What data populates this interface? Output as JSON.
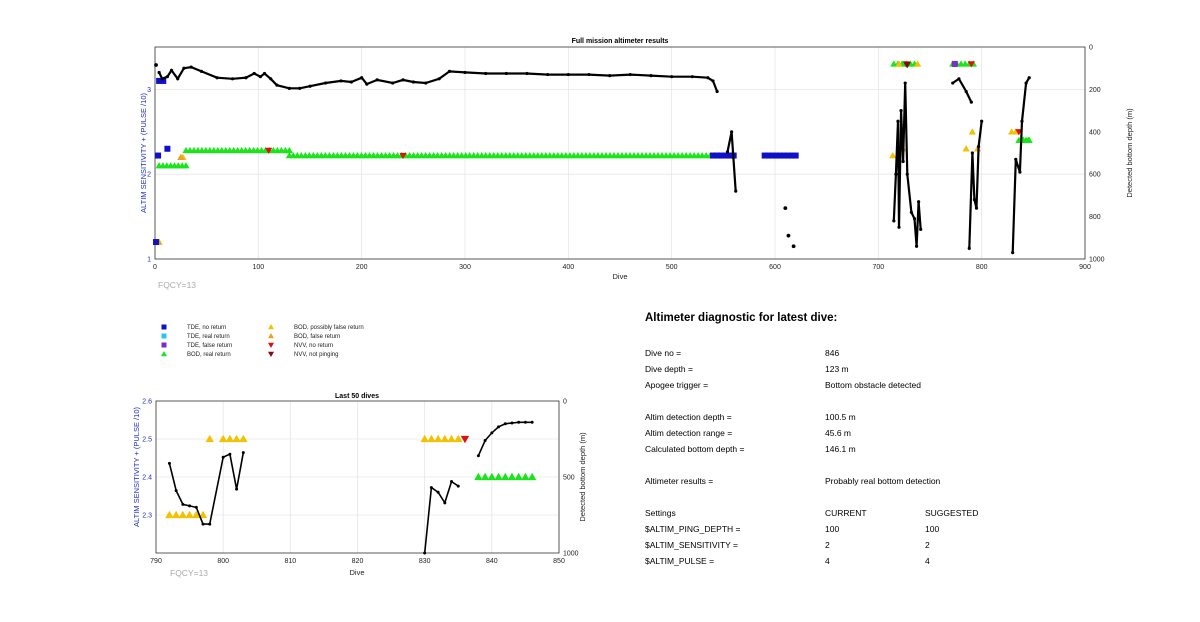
{
  "colors": {
    "tde_no_return": "#1010c8",
    "tde_real_return": "#22c8e6",
    "tde_false_return": "#7a2ec8",
    "bod_real_return": "#19e619",
    "bod_possibly_false": "#f2c200",
    "bod_false_return": "#f0a020",
    "nvv_no_return": "#e01010",
    "nvv_not_pinging": "#7a1010",
    "depth_line": "#000000",
    "left_axis": "#1f2fbf",
    "grid": "#e6e6e6"
  },
  "legend": [
    {
      "label": "TDE, no return",
      "marker": "square",
      "color": "#1010c8"
    },
    {
      "label": "TDE, real return",
      "marker": "square",
      "color": "#22c8e6"
    },
    {
      "label": "TDE, false return",
      "marker": "square",
      "color": "#7a2ec8"
    },
    {
      "label": "BOD, real return",
      "marker": "triangle-up",
      "color": "#19e619"
    },
    {
      "label": "BOD, possibly false return",
      "marker": "triangle-up",
      "color": "#f2c200"
    },
    {
      "label": "BOD, false return",
      "marker": "triangle-up",
      "color": "#f0a020"
    },
    {
      "label": "NVV, no return",
      "marker": "triangle-down",
      "color": "#e01010"
    },
    {
      "label": "NVV, not pinging",
      "marker": "triangle-down",
      "color": "#7a1010"
    }
  ],
  "chart_data": [
    {
      "type": "scatter",
      "title": "Full mission altimeter results",
      "xlabel": "Dive",
      "ylabel_left": "ALTIM SENSITIVITY + (PULSE /10)",
      "ylabel_right": "Detected bottom depth (m)",
      "annotation": "FQCY=13",
      "xlim": [
        0,
        900
      ],
      "ylim_left": [
        1,
        3.5
      ],
      "ylim_right": [
        1000,
        0
      ],
      "xticks": [
        "0",
        "100",
        "200",
        "300",
        "400",
        "500",
        "600",
        "700",
        "800",
        "900"
      ],
      "yticks_left": [
        "1",
        "2",
        "3"
      ],
      "yticks_right": [
        "0",
        "200",
        "400",
        "600",
        "800",
        "1000"
      ],
      "grid": true,
      "series": [
        {
          "name": "BOD, real return",
          "marker": "triangle-up",
          "color": "#19e619",
          "segments": [
            [
              4,
              30,
              2.1
            ],
            [
              30,
              130,
              2.28
            ],
            [
              130,
              545,
              2.22
            ],
            [
              715,
              735,
              3.3
            ],
            [
              772,
              792,
              3.3
            ],
            [
              836,
              845,
              2.4
            ]
          ],
          "points": [
            [
              840,
              2.4
            ],
            [
              843,
              2.4
            ],
            [
              846,
              2.4
            ]
          ]
        },
        {
          "name": "BOD, possibly false return",
          "marker": "triangle-up",
          "color": "#f2c200",
          "points": [
            [
              4,
              1.2
            ],
            [
              27,
              2.2
            ],
            [
              714,
              2.22
            ],
            [
              724,
              2.3
            ],
            [
              720,
              3.3
            ],
            [
              738,
              3.3
            ],
            [
              785,
              2.3
            ],
            [
              791,
              2.5
            ],
            [
              796,
              2.3
            ],
            [
              829,
              2.5
            ],
            [
              833,
              2.5
            ]
          ]
        },
        {
          "name": "BOD, false return",
          "marker": "triangle-up",
          "color": "#f0a020",
          "points": [
            [
              3,
              1.2
            ],
            [
              25,
              2.2
            ]
          ]
        },
        {
          "name": "TDE, no return",
          "marker": "square",
          "color": "#1010c8",
          "segments": [
            [
              540,
              560,
              2.22
            ],
            [
              590,
              620,
              2.22
            ]
          ],
          "points": [
            [
              1,
              1.2
            ],
            [
              3,
              2.22
            ],
            [
              12,
              2.3
            ],
            [
              4,
              3.1
            ],
            [
              8,
              3.1
            ]
          ]
        },
        {
          "name": "TDE, false return",
          "marker": "square",
          "color": "#7a2ec8",
          "points": [
            [
              774,
              3.3
            ]
          ]
        },
        {
          "name": "NVV, no return",
          "marker": "triangle-down",
          "color": "#e01010",
          "points": [
            [
              727,
              3.3
            ],
            [
              790,
              3.3
            ],
            [
              836,
              2.5
            ],
            [
              110,
              2.28
            ],
            [
              240,
              2.22
            ]
          ]
        },
        {
          "name": "NVV, not pinging",
          "marker": "triangle-down",
          "color": "#7a1010",
          "points": [
            [
              728,
              3.29
            ]
          ]
        }
      ],
      "depth_series": {
        "name": "Detected bottom depth",
        "lines": [
          [
            [
              4,
              120
            ],
            [
              7,
              150
            ],
            [
              12,
              140
            ],
            [
              16,
              110
            ],
            [
              22,
              150
            ],
            [
              28,
              100
            ],
            [
              35,
              95
            ],
            [
              45,
              115
            ],
            [
              60,
              145
            ],
            [
              75,
              150
            ],
            [
              88,
              145
            ],
            [
              96,
              125
            ],
            [
              102,
              140
            ],
            [
              106,
              125
            ],
            [
              112,
              150
            ],
            [
              118,
              180
            ],
            [
              130,
              195
            ],
            [
              140,
              195
            ],
            [
              150,
              185
            ],
            [
              165,
              170
            ],
            [
              180,
              160
            ],
            [
              190,
              165
            ],
            [
              200,
              145
            ],
            [
              205,
              175
            ],
            [
              215,
              155
            ],
            [
              230,
              170
            ],
            [
              240,
              155
            ],
            [
              250,
              165
            ],
            [
              262,
              170
            ],
            [
              275,
              150
            ],
            [
              285,
              115
            ],
            [
              300,
              120
            ],
            [
              320,
              125
            ],
            [
              340,
              125
            ],
            [
              360,
              125
            ],
            [
              380,
              130
            ],
            [
              400,
              130
            ],
            [
              420,
              130
            ],
            [
              440,
              135
            ],
            [
              460,
              130
            ],
            [
              480,
              135
            ],
            [
              500,
              140
            ],
            [
              520,
              140
            ],
            [
              535,
              145
            ],
            [
              540,
              160
            ],
            [
              544,
              210
            ]
          ],
          [
            [
              554,
              495
            ],
            [
              558,
              400
            ],
            [
              562,
              680
            ]
          ],
          [
            [
              715,
              820
            ],
            [
              717,
              600
            ],
            [
              719,
              350
            ],
            [
              720,
              850
            ],
            [
              722,
              300
            ],
            [
              724,
              540
            ],
            [
              726,
              170
            ],
            [
              728,
              600
            ],
            [
              732,
              780
            ],
            [
              735,
              810
            ],
            [
              737,
              940
            ],
            [
              739,
              730
            ],
            [
              741,
              860
            ]
          ],
          [
            [
              772,
              170
            ],
            [
              778,
              150
            ],
            [
              785,
              210
            ],
            [
              790,
              260
            ]
          ],
          [
            [
              788,
              950
            ],
            [
              791,
              500
            ],
            [
              793,
              720
            ],
            [
              795,
              760
            ],
            [
              797,
              470
            ],
            [
              800,
              350
            ]
          ],
          [
            [
              830,
              970
            ],
            [
              833,
              530
            ],
            [
              837,
              590
            ],
            [
              839,
              350
            ],
            [
              843,
              170
            ],
            [
              846,
              145
            ]
          ]
        ],
        "points": [
          [
            1,
            85
          ],
          [
            610,
            760
          ],
          [
            613,
            890
          ],
          [
            618,
            940
          ]
        ]
      }
    },
    {
      "type": "scatter",
      "title": "Last 50 dives",
      "xlabel": "Dive",
      "ylabel_left": "ALTIM SENSITIVITY + (PULSE /10)",
      "ylabel_right": "Detected bottom depth (m)",
      "annotation": "FQCY=13",
      "xlim": [
        790,
        850
      ],
      "ylim_left": [
        2.2,
        2.6
      ],
      "ylim_right": [
        1000,
        0
      ],
      "xticks": [
        "790",
        "800",
        "810",
        "820",
        "830",
        "840",
        "850"
      ],
      "yticks_left": [
        "2.3",
        "2.4",
        "2.5",
        "2.6"
      ],
      "yticks_right": [
        "0",
        "500",
        "1000"
      ],
      "grid": true,
      "series": [
        {
          "name": "BOD, possibly false return",
          "marker": "triangle-up",
          "color": "#f2c200",
          "points": [
            [
              792,
              2.3
            ],
            [
              793,
              2.3
            ],
            [
              794,
              2.3
            ],
            [
              795,
              2.3
            ],
            [
              796,
              2.3
            ],
            [
              797,
              2.3
            ],
            [
              798,
              2.5
            ],
            [
              800,
              2.5
            ],
            [
              801,
              2.5
            ],
            [
              802,
              2.5
            ],
            [
              803,
              2.5
            ],
            [
              830,
              2.5
            ],
            [
              831,
              2.5
            ],
            [
              832,
              2.5
            ],
            [
              833,
              2.5
            ],
            [
              834,
              2.5
            ],
            [
              835,
              2.5
            ]
          ]
        },
        {
          "name": "NVV, no return",
          "marker": "triangle-down",
          "color": "#e01010",
          "points": [
            [
              836,
              2.5
            ]
          ]
        },
        {
          "name": "BOD, real return",
          "marker": "triangle-up",
          "color": "#19e619",
          "points": [
            [
              838,
              2.4
            ],
            [
              839,
              2.4
            ],
            [
              840,
              2.4
            ],
            [
              841,
              2.4
            ],
            [
              842,
              2.4
            ],
            [
              843,
              2.4
            ],
            [
              844,
              2.4
            ],
            [
              845,
              2.4
            ],
            [
              846,
              2.4
            ]
          ]
        }
      ],
      "depth_series": {
        "name": "Detected bottom depth",
        "lines": [
          [
            [
              792,
              410
            ],
            [
              793,
              590
            ],
            [
              794,
              680
            ],
            [
              795,
              690
            ],
            [
              796,
              700
            ],
            [
              797,
              810
            ],
            [
              798,
              810
            ],
            [
              800,
              370
            ],
            [
              801,
              350
            ],
            [
              802,
              580
            ],
            [
              803,
              340
            ]
          ],
          [
            [
              830,
              1000
            ],
            [
              831,
              570
            ],
            [
              832,
              600
            ],
            [
              833,
              670
            ],
            [
              834,
              530
            ],
            [
              835,
              560
            ]
          ],
          [
            [
              838,
              360
            ],
            [
              839,
              260
            ],
            [
              840,
              210
            ],
            [
              841,
              170
            ],
            [
              842,
              150
            ],
            [
              843,
              145
            ],
            [
              844,
              140
            ],
            [
              845,
              140
            ],
            [
              846,
              140
            ]
          ]
        ],
        "points": []
      }
    }
  ],
  "diagnostic": {
    "heading": "Altimeter diagnostic for latest dive:",
    "dive_no_label": "Dive no =",
    "dive_no_value": "846",
    "dive_depth_label": "Dive depth =",
    "dive_depth_value": "123 m",
    "apogee_label": "Apogee trigger =",
    "apogee_value": "Bottom obstacle detected",
    "altim_det_depth_label": "Altim detection depth =",
    "altim_det_depth_value": "100.5 m",
    "altim_det_range_label": "Altim detection range =",
    "altim_det_range_value": "45.6 m",
    "calc_bottom_label": "Calculated bottom depth =",
    "calc_bottom_value": "146.1 m",
    "results_label": "Altimeter results =",
    "results_value": "Probably real bottom detection",
    "settings_label": "Settings",
    "current_label": "CURRENT",
    "suggested_label": "SUGGESTED",
    "settings": [
      {
        "name": "$ALTIM_PING_DEPTH =",
        "current": "100",
        "suggested": "100"
      },
      {
        "name": "$ALTIM_SENSITIVITY =",
        "current": "2",
        "suggested": "2"
      },
      {
        "name": "$ALTIM_PULSE =",
        "current": "4",
        "suggested": "4"
      }
    ]
  }
}
